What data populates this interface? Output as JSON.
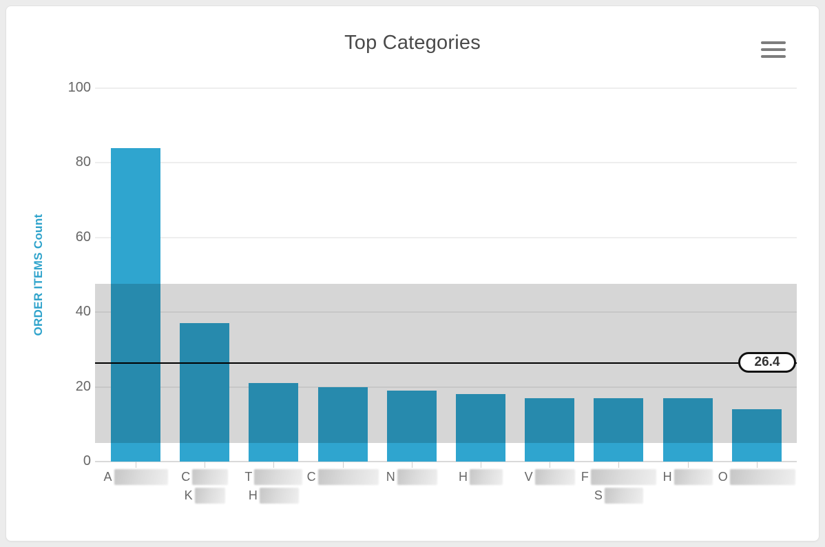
{
  "header": {
    "title": "Top Categories",
    "menu_icon": "hamburger-icon"
  },
  "chart_data": {
    "type": "bar",
    "title": "Top Categories",
    "xlabel": "",
    "ylabel": "ORDER ITEMS Count",
    "ylim": [
      0,
      100
    ],
    "yticks": [
      0,
      20,
      40,
      60,
      80,
      100
    ],
    "grid": true,
    "legend": false,
    "bar_color": "#2fa5cf",
    "band_color": "rgba(0,0,0,0.16)",
    "values": [
      84,
      37,
      21,
      20,
      19,
      18,
      17,
      17,
      17,
      14
    ],
    "categories": [
      {
        "redacted": true,
        "lines": [
          {
            "text": "A",
            "redact_w": 78
          }
        ]
      },
      {
        "redacted": true,
        "lines": [
          {
            "text": "C",
            "redact_w": 52
          },
          {
            "text": "K",
            "redact_w": 44
          }
        ]
      },
      {
        "redacted": true,
        "lines": [
          {
            "text": "T",
            "redact_w": 70
          },
          {
            "text": "H",
            "redact_w": 57
          }
        ]
      },
      {
        "redacted": true,
        "lines": [
          {
            "text": "C",
            "redact_w": 88
          }
        ]
      },
      {
        "redacted": true,
        "lines": [
          {
            "text": "N",
            "redact_w": 58
          }
        ]
      },
      {
        "redacted": true,
        "lines": [
          {
            "text": "H",
            "redact_w": 48
          }
        ]
      },
      {
        "redacted": true,
        "lines": [
          {
            "text": "V",
            "redact_w": 58
          }
        ]
      },
      {
        "redacted": true,
        "lines": [
          {
            "text": "F",
            "redact_w": 95
          },
          {
            "text": "S",
            "redact_w": 56
          }
        ]
      },
      {
        "redacted": true,
        "lines": [
          {
            "text": "H",
            "redact_w": 56
          }
        ]
      },
      {
        "redacted": true,
        "lines": [
          {
            "text": "O",
            "redact_w": 95
          }
        ]
      }
    ],
    "mean_line": {
      "value": 26.4,
      "label": "26.4"
    },
    "band": {
      "from": 5.0,
      "to": 47.6
    }
  }
}
